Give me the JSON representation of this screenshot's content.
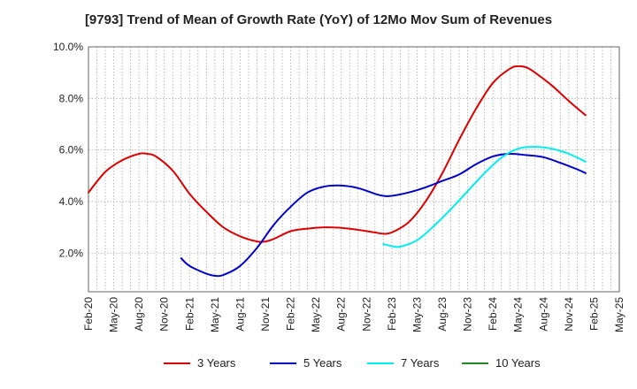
{
  "chart_data": {
    "type": "line",
    "title": "[9793]  Trend of Mean of Growth Rate (YoY) of 12Mo Mov Sum of Revenues",
    "xlabel": "",
    "ylabel": "",
    "x_tick_labels": [
      "Feb-20",
      "May-20",
      "Aug-20",
      "Nov-20",
      "Feb-21",
      "May-21",
      "Aug-21",
      "Nov-21",
      "Feb-22",
      "May-22",
      "Aug-22",
      "Nov-22",
      "Feb-23",
      "May-23",
      "Aug-23",
      "Nov-23",
      "Feb-24",
      "May-24",
      "Aug-24",
      "Nov-24",
      "Feb-25",
      "May-25"
    ],
    "x_range_months": [
      0,
      63
    ],
    "y_tick_labels": [
      "2.0%",
      "4.0%",
      "6.0%",
      "8.0%",
      "10.0%"
    ],
    "y_tick_values": [
      2,
      4,
      6,
      8,
      10
    ],
    "ylim": [
      0.5,
      10
    ],
    "grid": true,
    "legend_position": "bottom",
    "series": [
      {
        "name": "3 Years",
        "color": "#dd0000",
        "points": [
          [
            0,
            4.35
          ],
          [
            2,
            5.15
          ],
          [
            4,
            5.6
          ],
          [
            6,
            5.85
          ],
          [
            7,
            5.85
          ],
          [
            8,
            5.75
          ],
          [
            10,
            5.2
          ],
          [
            12,
            4.3
          ],
          [
            14,
            3.6
          ],
          [
            16,
            3.0
          ],
          [
            18,
            2.65
          ],
          [
            20,
            2.45
          ],
          [
            21,
            2.45
          ],
          [
            22,
            2.55
          ],
          [
            24,
            2.85
          ],
          [
            26,
            2.95
          ],
          [
            28,
            3.0
          ],
          [
            30,
            2.98
          ],
          [
            32,
            2.9
          ],
          [
            34,
            2.8
          ],
          [
            35,
            2.75
          ],
          [
            36,
            2.8
          ],
          [
            38,
            3.2
          ],
          [
            40,
            4.0
          ],
          [
            42,
            5.1
          ],
          [
            44,
            6.4
          ],
          [
            46,
            7.6
          ],
          [
            48,
            8.6
          ],
          [
            50,
            9.15
          ],
          [
            51,
            9.25
          ],
          [
            52,
            9.2
          ],
          [
            53,
            9.0
          ],
          [
            55,
            8.5
          ],
          [
            57,
            7.9
          ],
          [
            59,
            7.35
          ]
        ]
      },
      {
        "name": "5 Years",
        "color": "#0000cc",
        "points": [
          [
            11,
            1.8
          ],
          [
            12,
            1.5
          ],
          [
            14,
            1.2
          ],
          [
            15,
            1.12
          ],
          [
            16,
            1.15
          ],
          [
            18,
            1.5
          ],
          [
            20,
            2.2
          ],
          [
            22,
            3.1
          ],
          [
            24,
            3.8
          ],
          [
            26,
            4.35
          ],
          [
            28,
            4.58
          ],
          [
            30,
            4.62
          ],
          [
            32,
            4.52
          ],
          [
            34,
            4.3
          ],
          [
            35,
            4.22
          ],
          [
            36,
            4.22
          ],
          [
            38,
            4.35
          ],
          [
            40,
            4.55
          ],
          [
            42,
            4.8
          ],
          [
            44,
            5.05
          ],
          [
            46,
            5.45
          ],
          [
            48,
            5.75
          ],
          [
            50,
            5.85
          ],
          [
            52,
            5.8
          ],
          [
            54,
            5.72
          ],
          [
            56,
            5.5
          ],
          [
            58,
            5.25
          ],
          [
            59,
            5.1
          ]
        ]
      },
      {
        "name": "7 Years",
        "color": "#00eeee",
        "points": [
          [
            35,
            2.35
          ],
          [
            36,
            2.27
          ],
          [
            37,
            2.25
          ],
          [
            39,
            2.5
          ],
          [
            41,
            3.05
          ],
          [
            43,
            3.7
          ],
          [
            45,
            4.4
          ],
          [
            47,
            5.1
          ],
          [
            49,
            5.7
          ],
          [
            51,
            6.05
          ],
          [
            53,
            6.12
          ],
          [
            55,
            6.05
          ],
          [
            57,
            5.85
          ],
          [
            59,
            5.55
          ]
        ]
      },
      {
        "name": "10 Years",
        "color": "#228822",
        "points": []
      }
    ]
  }
}
